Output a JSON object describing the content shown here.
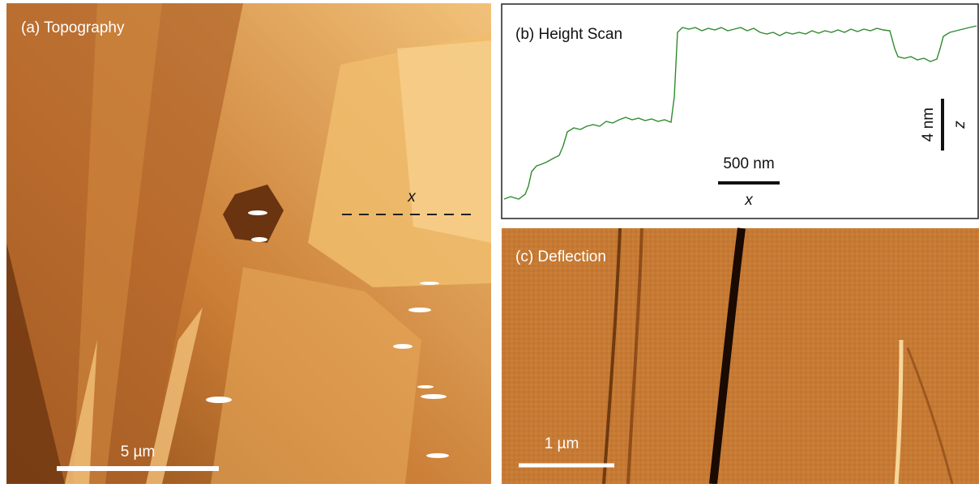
{
  "panels": [
    {
      "label": "(a) Topography",
      "scale_bar": "5 µm",
      "line_label": "x"
    },
    {
      "label": "(b) Height Scan",
      "scale_bar_x": "500 nm",
      "x_label": "x",
      "scale_bar_z": "4 nm",
      "z_label": "z"
    },
    {
      "label": "(c) Deflection",
      "scale_bar": "1 µm"
    }
  ]
}
